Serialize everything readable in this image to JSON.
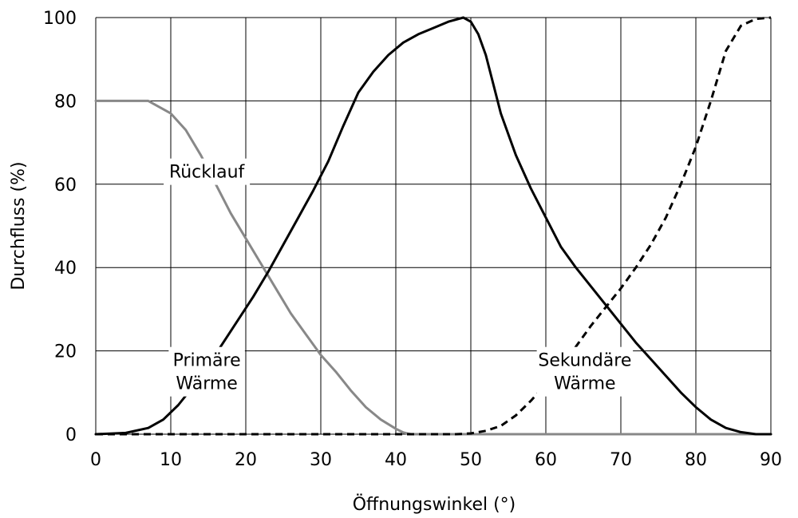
{
  "chart_data": {
    "type": "line",
    "xlabel": "Öffnungswinkel (°)",
    "ylabel": "Durchfluss (%)",
    "xlim": [
      0,
      90
    ],
    "ylim": [
      0,
      100
    ],
    "xticks": [
      0,
      10,
      20,
      30,
      40,
      50,
      60,
      70,
      80,
      90
    ],
    "yticks": [
      0,
      20,
      40,
      60,
      80,
      100
    ],
    "grid": true,
    "legend": "none",
    "series": [
      {
        "name": "Rücklauf",
        "color": "#888888",
        "dash": "solid",
        "points": [
          [
            0,
            80
          ],
          [
            7,
            80
          ],
          [
            10,
            77
          ],
          [
            12,
            73
          ],
          [
            14,
            67
          ],
          [
            16,
            60
          ],
          [
            18,
            53
          ],
          [
            20,
            47
          ],
          [
            22,
            41
          ],
          [
            24,
            35
          ],
          [
            26,
            29
          ],
          [
            28,
            24
          ],
          [
            30,
            19
          ],
          [
            32,
            15
          ],
          [
            34,
            10.5
          ],
          [
            36,
            6.5
          ],
          [
            38,
            3.5
          ],
          [
            40,
            1.3
          ],
          [
            41,
            0.4
          ],
          [
            42,
            0
          ],
          [
            90,
            0
          ]
        ]
      },
      {
        "name": "Primäre Wärme",
        "color": "#000000",
        "dash": "solid",
        "points": [
          [
            0,
            0
          ],
          [
            4,
            0.3
          ],
          [
            7,
            1.5
          ],
          [
            9,
            3.5
          ],
          [
            11,
            7
          ],
          [
            13,
            11.5
          ],
          [
            15,
            16.5
          ],
          [
            17,
            22
          ],
          [
            19,
            27.5
          ],
          [
            21,
            33
          ],
          [
            23,
            39
          ],
          [
            25,
            45.5
          ],
          [
            27,
            52
          ],
          [
            29,
            58.5
          ],
          [
            31,
            65.5
          ],
          [
            33,
            74
          ],
          [
            35,
            82
          ],
          [
            37,
            87
          ],
          [
            39,
            91
          ],
          [
            41,
            94
          ],
          [
            43,
            96
          ],
          [
            45,
            97.5
          ],
          [
            47,
            99
          ],
          [
            49,
            100
          ],
          [
            50,
            99
          ],
          [
            51,
            96
          ],
          [
            52,
            91
          ],
          [
            53,
            84
          ],
          [
            54,
            77
          ],
          [
            56,
            67
          ],
          [
            58,
            59
          ],
          [
            60,
            52
          ],
          [
            62,
            45
          ],
          [
            64,
            40
          ],
          [
            66,
            35.5
          ],
          [
            68,
            31
          ],
          [
            70,
            26.5
          ],
          [
            72,
            22
          ],
          [
            74,
            18
          ],
          [
            76,
            14
          ],
          [
            78,
            10
          ],
          [
            80,
            6.5
          ],
          [
            82,
            3.5
          ],
          [
            84,
            1.5
          ],
          [
            86,
            0.5
          ],
          [
            88,
            0
          ],
          [
            90,
            0
          ]
        ]
      },
      {
        "name": "Sekundäre Wärme",
        "color": "#000000",
        "dash": "dashed",
        "points": [
          [
            0,
            0
          ],
          [
            48,
            0
          ],
          [
            50,
            0.2
          ],
          [
            52,
            0.8
          ],
          [
            54,
            2
          ],
          [
            56,
            4.5
          ],
          [
            58,
            8
          ],
          [
            60,
            12
          ],
          [
            62,
            16.5
          ],
          [
            64,
            21
          ],
          [
            66,
            26
          ],
          [
            68,
            30.5
          ],
          [
            70,
            35
          ],
          [
            72,
            40
          ],
          [
            74,
            45.5
          ],
          [
            76,
            52
          ],
          [
            78,
            60
          ],
          [
            80,
            69
          ],
          [
            82,
            80
          ],
          [
            84,
            92
          ],
          [
            86,
            98
          ],
          [
            88,
            99.7
          ],
          [
            90,
            100
          ]
        ]
      }
    ],
    "annotations": [
      {
        "lines": [
          "Rücklauf"
        ],
        "x": 14.8,
        "y": 63,
        "anchor": "middle",
        "color": "#000000"
      },
      {
        "lines": [
          "Primäre",
          "Wärme"
        ],
        "x": 14.8,
        "y": 15,
        "anchor": "middle",
        "color": "#000000"
      },
      {
        "lines": [
          "Sekundäre",
          "Wärme"
        ],
        "x": 65.2,
        "y": 15,
        "anchor": "middle",
        "color": "#000000"
      }
    ]
  }
}
